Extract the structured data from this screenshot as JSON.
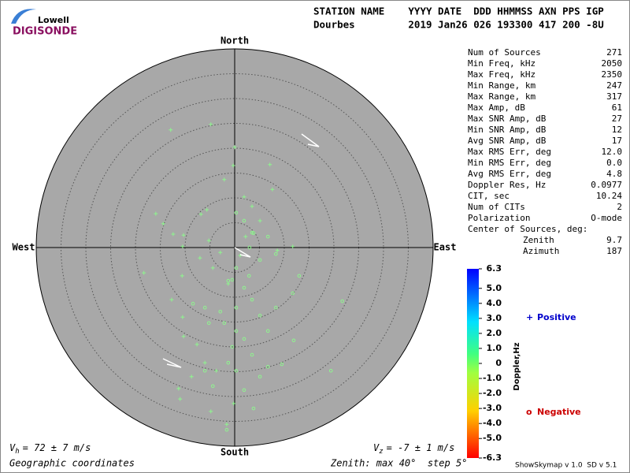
{
  "logo": {
    "top": "Lowell",
    "bottom": "DIGISONDE"
  },
  "header": {
    "line1": "STATION NAME    YYYY DATE  DDD HHMMSS AXN PPS IGP",
    "line2": "Dourbes         2019 Jan26 026 193300 417 200 -8U"
  },
  "stats": [
    [
      "Num of Sources",
      "271"
    ],
    [
      "Min Freq, kHz",
      "2050"
    ],
    [
      "Max Freq, kHz",
      "2350"
    ],
    [
      "Min Range, km",
      "247"
    ],
    [
      "Max Range, km",
      "317"
    ],
    [
      "Max Amp, dB",
      "61"
    ],
    [
      "Max SNR Amp, dB",
      "27"
    ],
    [
      "Min SNR Amp, dB",
      "12"
    ],
    [
      "Avg SNR Amp, dB",
      "17"
    ],
    [
      "Max RMS Err, deg",
      "12.0"
    ],
    [
      "Min RMS Err, deg",
      "0.0"
    ],
    [
      "Avg RMS Err, deg",
      "4.8"
    ],
    [
      "Doppler Res, Hz",
      "0.0977"
    ],
    [
      "CIT, sec",
      "10.24"
    ],
    [
      "Num of CITs",
      "2"
    ],
    [
      "Polarization",
      "O-mode"
    ]
  ],
  "center": {
    "title": "Center of Sources, deg:",
    "zenith": [
      "Zenith",
      "9.7"
    ],
    "azimuth": [
      "Azimuth",
      "187"
    ]
  },
  "footer": {
    "vh": {
      "symbol": "V",
      "sub": "h",
      "text": "= 72 ± 7 m/s"
    },
    "vz": {
      "symbol": "V",
      "sub": "z",
      "text": "= -7 ± 1 m/s"
    },
    "coords": "Geographic coordinates",
    "zenith_note": "Zenith: max 40°  step 5°",
    "version": "ShowSkymap v 1.0  SD v 5.1"
  },
  "colorbar": {
    "label": "Doppler,Hz",
    "lim": [
      -6.3,
      6.3
    ],
    "ticks": [
      6.3,
      {
        "value": 5,
        "label": "5.0"
      },
      {
        "value": 4,
        "label": "4.0"
      },
      {
        "value": 3,
        "label": "3.0"
      },
      {
        "value": 2,
        "label": "2.0"
      },
      {
        "value": 1,
        "label": "1.0"
      },
      0,
      {
        "value": -1,
        "label": "-1.0"
      },
      {
        "value": -2,
        "label": "-2.0"
      },
      {
        "value": -3,
        "label": "-3.0"
      },
      {
        "value": -4,
        "label": "-4.0"
      },
      {
        "value": -5,
        "label": "-5.0"
      },
      -6.3
    ]
  },
  "chart_data": {
    "type": "skymap",
    "directions": {
      "north": "North",
      "south": "South",
      "east": "East",
      "west": "West"
    },
    "rlim": [
      0,
      40
    ],
    "rticks": [
      5,
      10,
      15,
      20,
      25,
      30,
      35,
      40
    ],
    "series": [
      {
        "name": "Positive",
        "marker": "+",
        "color": "#8ef58e",
        "legend_color": "#0000cc",
        "x": [
          -12.9,
          -4.8,
          0,
          -0.3,
          7.1,
          -2.1,
          7.6,
          -15.9,
          -14.4,
          -12.4,
          -10.3,
          -10.5,
          -6.8,
          -5.6,
          1.9,
          3.5,
          5.1,
          11.7,
          -18.3,
          -10.6,
          -12.7,
          -10.5,
          -10.3,
          -7.6,
          -11.3,
          -11,
          -4.8,
          -1.6,
          -0.2,
          -8.7,
          -6,
          -3.7,
          1.1,
          -2.9,
          -5.2,
          2.2,
          8.6,
          -1.3,
          -4.4,
          -7
        ],
        "y": [
          23.7,
          24.8,
          20.2,
          16.5,
          16.7,
          13.7,
          11.7,
          6.8,
          4.8,
          2.7,
          2.5,
          0.2,
          6.7,
          7.6,
          10.2,
          8.3,
          5.4,
          0.2,
          -5.1,
          -5.7,
          -10.5,
          -14,
          -17.9,
          -19.5,
          -28.4,
          -30.5,
          -33,
          -35.6,
          -31.4,
          -26,
          -23.2,
          -24.8,
          -1.6,
          -1,
          1.4,
          2.2,
          -0.6,
          -7.3,
          -4.1,
          -2.1
        ]
      },
      {
        "name": "Negative",
        "marker": "o",
        "color": "#8ef58e",
        "legend_color": "#cc0000",
        "x": [
          0.3,
          3.5,
          6.7,
          3,
          0.3,
          -1.3,
          1.9,
          3.5,
          0.3,
          -2.9,
          -5.2,
          5.1,
          6.7,
          1.9,
          -0.5,
          3.5,
          6.7,
          9.5,
          0.3,
          5.1,
          1.9,
          3.8,
          -1.6,
          13,
          11.7,
          21.7,
          19.4,
          11.9,
          8.3,
          -8.4,
          -6,
          -2.1,
          0.3,
          -1.3,
          -4.4,
          -6,
          2.9,
          -0.5,
          5.1,
          8.3,
          3.8,
          1.9
        ],
        "y": [
          7,
          3,
          2.2,
          0,
          -4.1,
          -6.7,
          -8.1,
          -10.5,
          -12.1,
          -12.9,
          -15.2,
          -13.7,
          -16.8,
          -18.4,
          -20,
          -21.6,
          -24,
          -23.5,
          -24.8,
          -26,
          -28.7,
          -32.4,
          -36.7,
          -5.7,
          -9.2,
          -10.8,
          -24.8,
          -18.7,
          -12.1,
          -11.3,
          -12.1,
          -15.2,
          -16.8,
          -23.2,
          -27.9,
          -24.8,
          -5.7,
          -6.5,
          -2.5,
          -1.3,
          2.9,
          5.4
        ]
      }
    ]
  }
}
